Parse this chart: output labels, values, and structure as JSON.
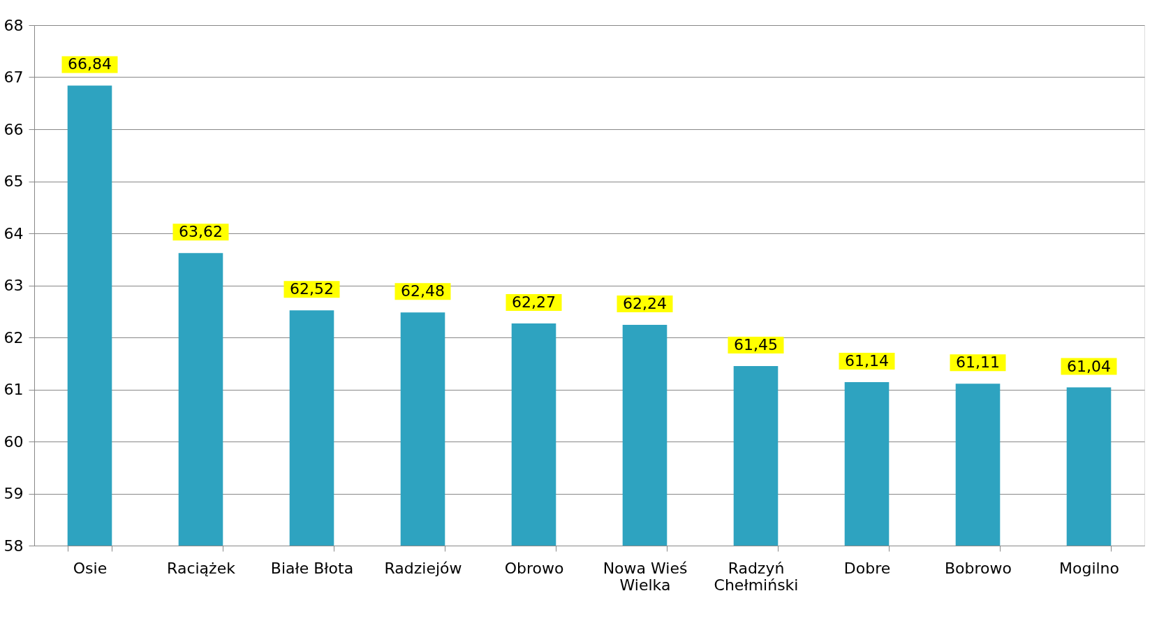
{
  "chart_data": {
    "type": "bar",
    "categories": [
      "Osie",
      "Raciążek",
      "Białe Błota",
      "Radziejów",
      "Obrowo",
      "Nowa Wieś Wielka",
      "Radzyń Chełmiński",
      "Dobre",
      "Bobrowo",
      "Mogilno"
    ],
    "values": [
      66.84,
      63.62,
      62.52,
      62.48,
      62.27,
      62.24,
      61.45,
      61.14,
      61.11,
      61.04
    ],
    "value_labels": [
      "66,84",
      "63,62",
      "62,52",
      "62,48",
      "62,27",
      "62,24",
      "61,45",
      "61,14",
      "61,11",
      "61,04"
    ],
    "color": "#2ea3c0",
    "ylim": [
      58,
      68
    ],
    "yticks": [
      58,
      59,
      60,
      61,
      62,
      63,
      64,
      65,
      66,
      67,
      68
    ],
    "grid": "y"
  }
}
